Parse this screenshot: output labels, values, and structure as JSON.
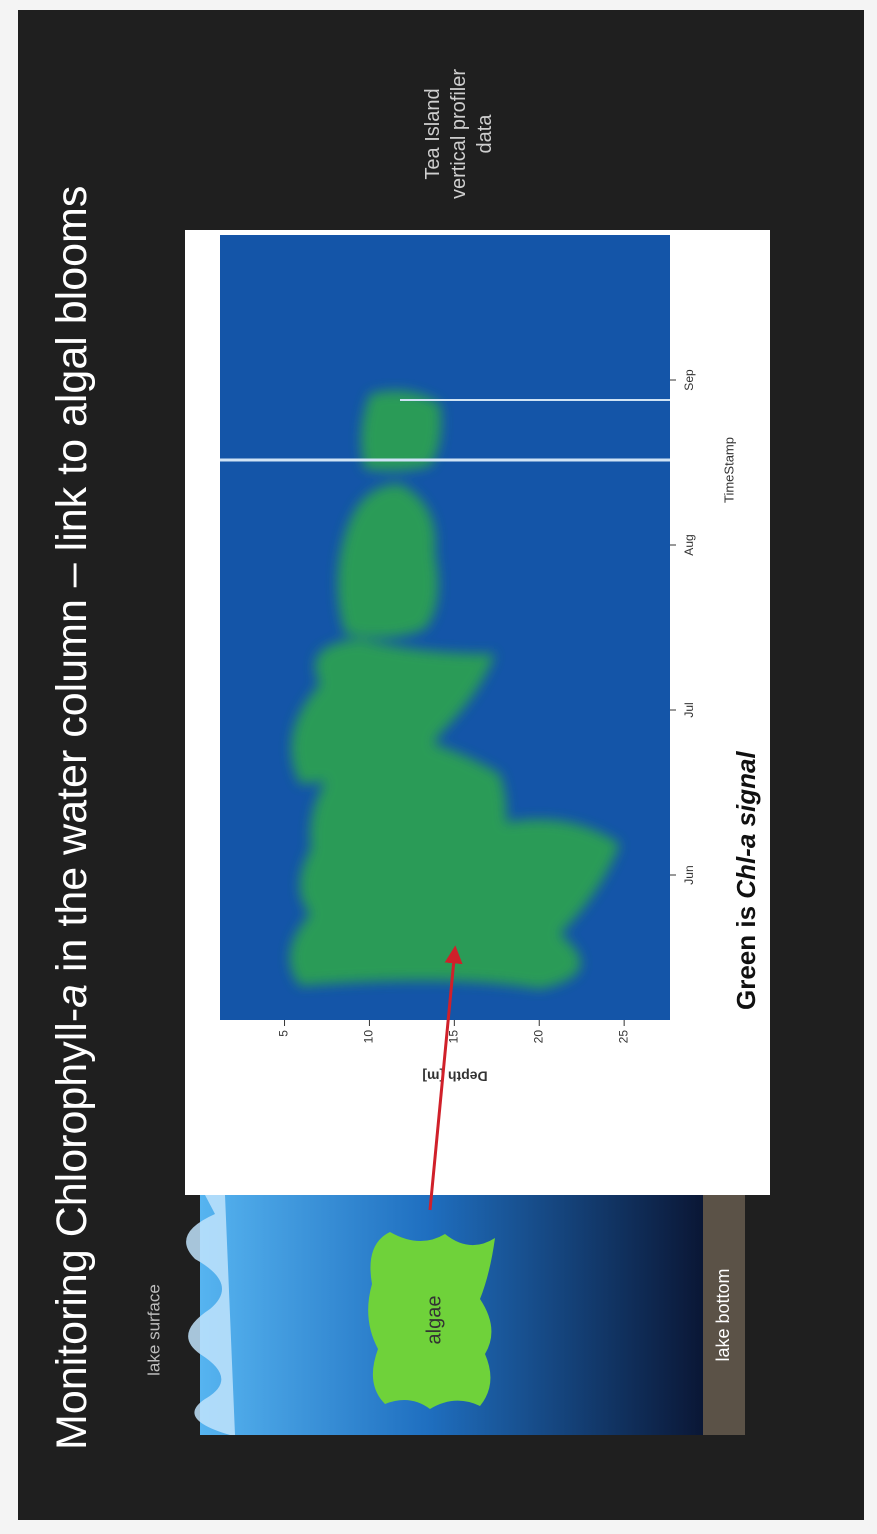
{
  "slide": {
    "title": {
      "before": "Monitoring Chlorophyll-",
      "italic": "a",
      "after": " in the water column – link to algal blooms"
    },
    "lake_surface": "lake surface",
    "algae": "algae",
    "lake_bottom": "lake bottom",
    "side_note": "Tea Island vertical profiler data",
    "caption": {
      "before": "Green is ",
      "italic": "Chl-a signal"
    }
  },
  "chart_data": {
    "type": "heatmap",
    "categories": [
      "Jun",
      "Jul",
      "Aug",
      "Sep"
    ],
    "xlabel": "TimeStamp",
    "ylabel": "Depth [m]",
    "ylim": [
      1.2,
      27.7
    ],
    "yticks": [
      5,
      10,
      15,
      20,
      25
    ]
  }
}
